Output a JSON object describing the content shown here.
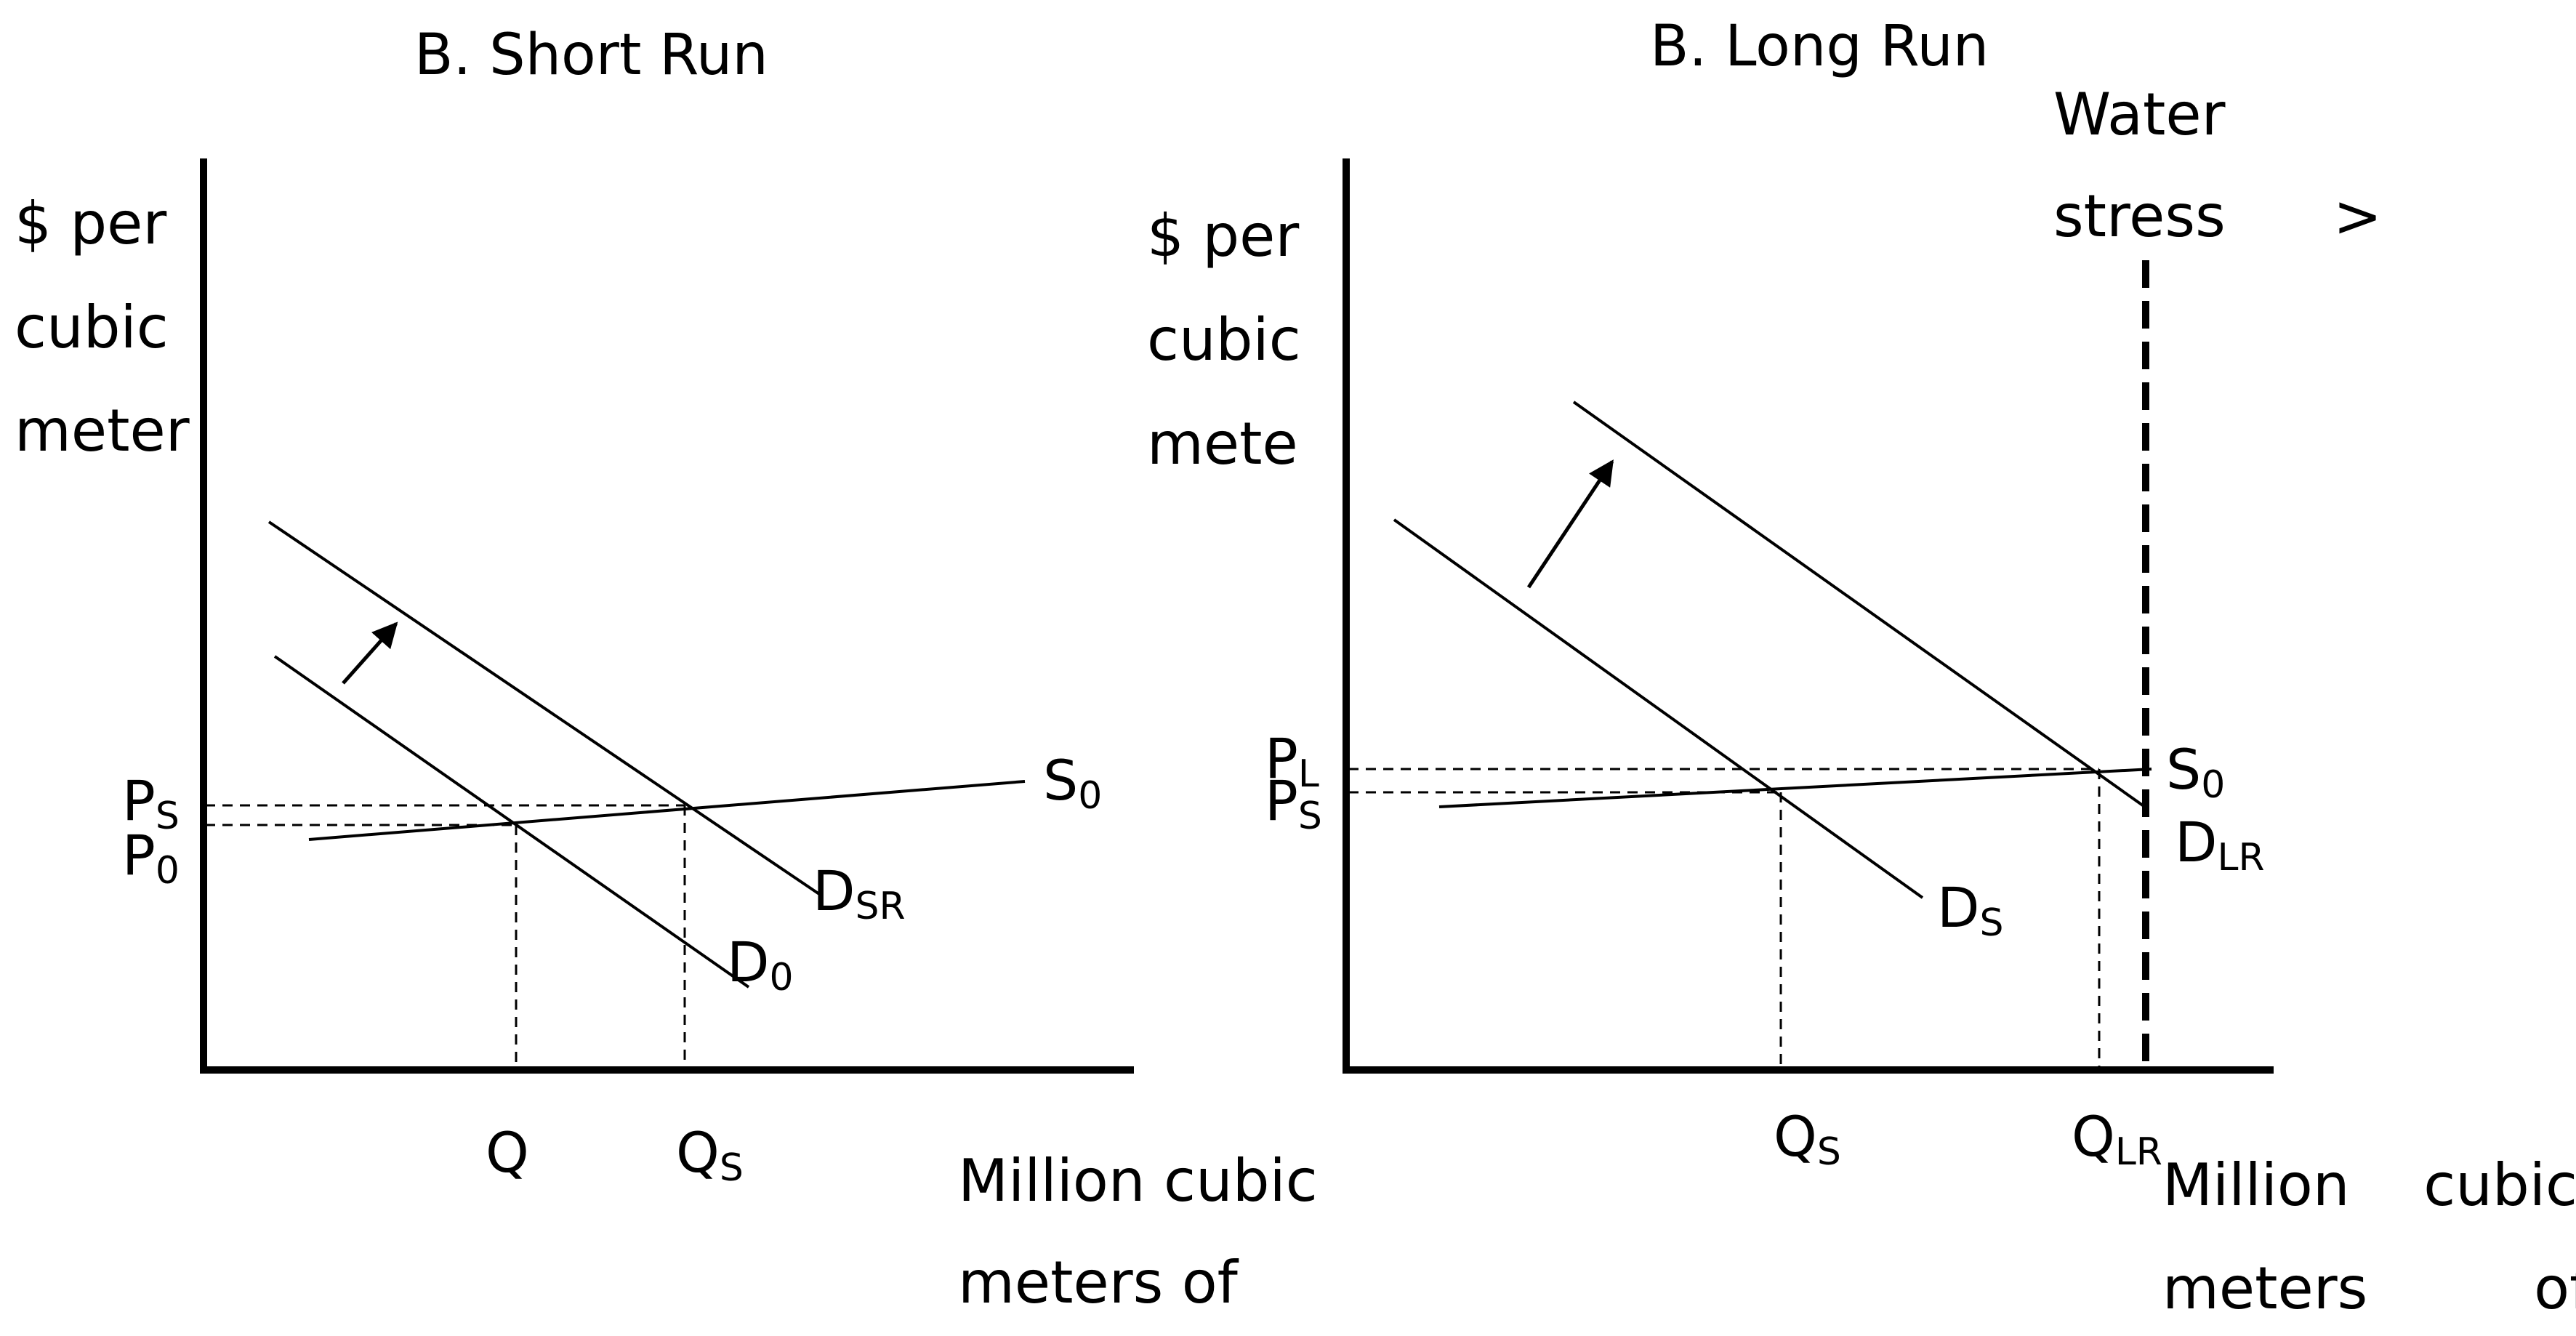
{
  "short_run": {
    "title": "B.   Short Run",
    "y_label_lines": [
      "$ per",
      "cubic",
      "meter"
    ],
    "x_label_lines": [
      "Million cubic",
      "meters of"
    ],
    "labels": {
      "supply": {
        "main": "S",
        "sub": "0"
      },
      "demand_sr": {
        "main": "D",
        "sub": "SR"
      },
      "demand_0": {
        "main": "D",
        "sub": "0"
      },
      "price_s": {
        "main": "P",
        "sub": "S"
      },
      "price_0": {
        "main": "P",
        "sub": "0"
      },
      "quantity": {
        "main": "Q",
        "sub": ""
      },
      "quantity_s": {
        "main": "Q",
        "sub": "S"
      }
    }
  },
  "long_run": {
    "title": "B. Long Run",
    "y_label_lines": [
      "$  per",
      "cubic",
      "mete"
    ],
    "x_label_lines": [
      "Million    cubic",
      "meters         of"
    ],
    "water_stress_lines": [
      "Water",
      "stress"
    ],
    "water_stress_arrow": ">",
    "labels": {
      "supply": {
        "main": "S",
        "sub": "0"
      },
      "demand_lr": {
        "main": "D",
        "sub": "LR"
      },
      "demand_s": {
        "main": "D",
        "sub": "S"
      },
      "price_l": {
        "main": "P",
        "sub": "L"
      },
      "price_s": {
        "main": "P",
        "sub": "S"
      },
      "quantity_s": {
        "main": "Q",
        "sub": "S"
      },
      "quantity_lr": {
        "main": "Q",
        "sub": "LR"
      }
    }
  }
}
